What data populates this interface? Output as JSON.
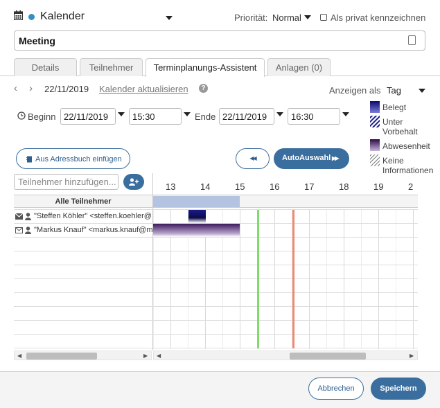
{
  "header": {
    "calendar_name": "Kalender",
    "priority_label": "Priorität:",
    "priority_value": "Normal",
    "private_label": "Als privat kennzeichnen",
    "title_value": "Meeting"
  },
  "tabs": [
    {
      "label": "Details",
      "active": false
    },
    {
      "label": "Teilnehmer",
      "active": false
    },
    {
      "label": "Terminplanungs-Assistent",
      "active": true
    },
    {
      "label": "Anlagen (0)",
      "active": false
    }
  ],
  "toolbar": {
    "date": "22/11/2019",
    "refresh_label": "Kalender aktualisieren",
    "help_glyph": "?",
    "show_as_label": "Anzeigen als",
    "show_as_value": "Tag"
  },
  "times": {
    "begin_label": "Beginn",
    "begin_date": "22/11/2019",
    "begin_time": "15:30",
    "end_label": "Ende",
    "end_date": "22/11/2019",
    "end_time": "16:30"
  },
  "legend": [
    {
      "label_lines": [
        "Belegt"
      ],
      "color": "#1a1a8c"
    },
    {
      "label_lines": [
        "Unter",
        "Vorbehalt"
      ],
      "color": "#1a1a8c"
    },
    {
      "label_lines": [
        "Abwesenheit"
      ],
      "color": "#3c1a5a"
    },
    {
      "label_lines": [
        "Keine",
        "Informationen"
      ],
      "color": "#888888"
    }
  ],
  "actions": {
    "addressbook_label": "Aus Adressbuch einfügen",
    "prev_glyph": "◀◀",
    "auto_label": "AutoAuswahl",
    "auto_glyph": "▶▶",
    "add_participant_placeholder": "Teilnehmer hinzufügen...",
    "add_participant_glyph": "+"
  },
  "grid": {
    "hours": [
      "13",
      "14",
      "15",
      "16",
      "17",
      "18",
      "19",
      "2"
    ],
    "all_participants_label": "Alle Teilnehmer",
    "participants": [
      "\"Steffen Köhler\" <steffen.koehler@",
      "\"Markus Knauf\" <markus.knauf@m"
    ]
  },
  "footer": {
    "cancel_label": "Abbrechen",
    "save_label": "Speichern"
  },
  "colors": {
    "accent": "#3a6e9e",
    "calendar_dot": "#2f8fc6",
    "busy": "#1a1a8c",
    "absent": "#3c1a5a",
    "all_busy_bar": "#b3c3e0",
    "start_marker": "#7fdc6a",
    "end_marker": "#ee8a72"
  }
}
